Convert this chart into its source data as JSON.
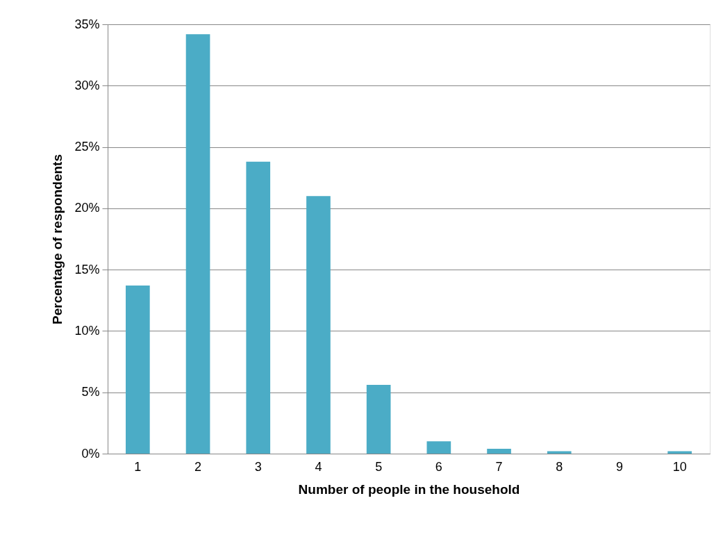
{
  "chart_data": {
    "type": "bar",
    "xlabel": "Number of people in the household",
    "ylabel": "Percentage of respondents",
    "categories": [
      "1",
      "2",
      "3",
      "4",
      "5",
      "6",
      "7",
      "8",
      "9",
      "10"
    ],
    "values": [
      13.7,
      34.2,
      23.8,
      21.0,
      5.6,
      1.0,
      0.4,
      0.2,
      0,
      0.2
    ],
    "color": "#4bacc6",
    "ylim": [
      0,
      35
    ],
    "yticks": [
      {
        "value": 0,
        "label": "0%"
      },
      {
        "value": 5,
        "label": "5%"
      },
      {
        "value": 10,
        "label": "10%"
      },
      {
        "value": 15,
        "label": "15%"
      },
      {
        "value": 20,
        "label": "20%"
      },
      {
        "value": 25,
        "label": "25%"
      },
      {
        "value": 30,
        "label": "30%"
      },
      {
        "value": 35,
        "label": "35%"
      }
    ],
    "grid": "y"
  }
}
